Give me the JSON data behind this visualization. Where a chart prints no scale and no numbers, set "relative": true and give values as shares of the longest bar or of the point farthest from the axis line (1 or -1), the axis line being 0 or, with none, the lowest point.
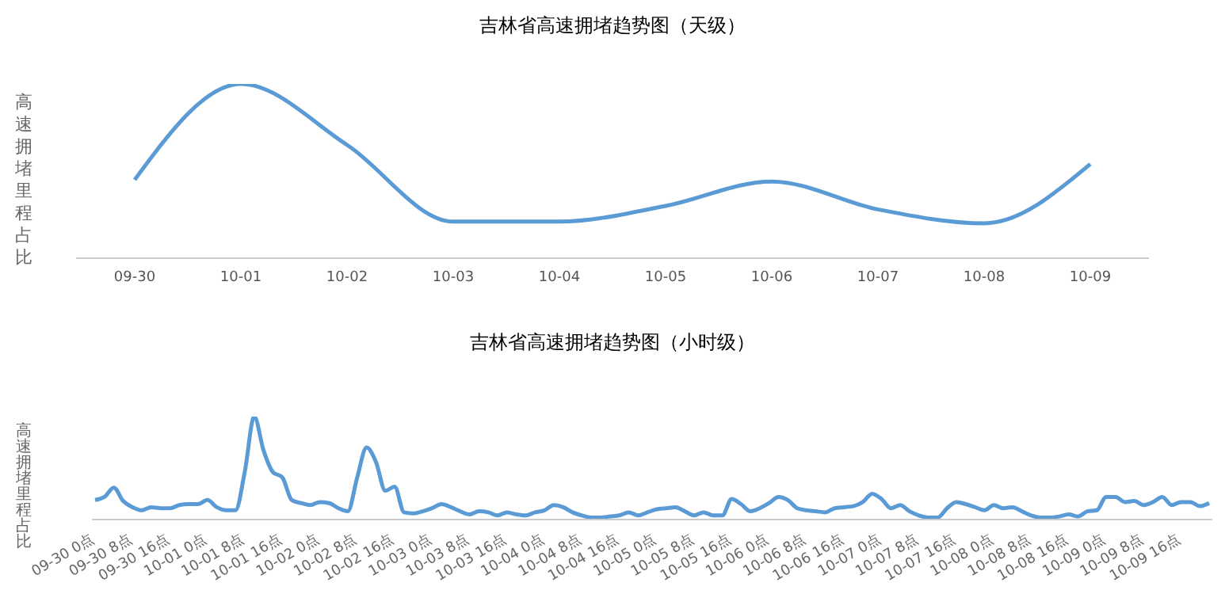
{
  "chart_data": [
    {
      "type": "line",
      "title": "吉林省高速拥堵趋势图（天级）",
      "ylabel": "高速拥堵里程占比",
      "relative": true,
      "categories": [
        "09-30",
        "10-01",
        "10-02",
        "10-03",
        "10-04",
        "10-05",
        "10-06",
        "10-07",
        "10-08",
        "10-09"
      ],
      "series": [
        {
          "color": "#5b9bd5",
          "values": [
            0.45,
            1.0,
            0.65,
            0.21,
            0.21,
            0.3,
            0.44,
            0.28,
            0.2,
            0.54
          ]
        }
      ]
    },
    {
      "type": "line",
      "title": "吉林省高速拥堵趋势图（小时级）",
      "ylabel": "高速拥堵里程占比",
      "relative": true,
      "categories": [
        "09-30 0点",
        null,
        null,
        null,
        "09-30 8点",
        null,
        null,
        null,
        "09-30 16点",
        null,
        null,
        null,
        "10-01 0点",
        null,
        null,
        null,
        "10-01 8点",
        null,
        null,
        null,
        "10-01 16点",
        null,
        null,
        null,
        "10-02 0点",
        null,
        null,
        null,
        "10-02 8点",
        null,
        null,
        null,
        "10-02 16点",
        null,
        null,
        null,
        "10-03 0点",
        null,
        null,
        null,
        "10-03 8点",
        null,
        null,
        null,
        "10-03 16点",
        null,
        null,
        null,
        "10-04 0点",
        null,
        null,
        null,
        "10-04 8点",
        null,
        null,
        null,
        "10-04 16点",
        null,
        null,
        null,
        "10-05 0点",
        null,
        null,
        null,
        "10-05 8点",
        null,
        null,
        null,
        "10-05 16点",
        null,
        null,
        null,
        "10-06 0点",
        null,
        null,
        null,
        "10-06 8点",
        null,
        null,
        null,
        "10-06 16点",
        null,
        null,
        null,
        "10-07 0点",
        null,
        null,
        null,
        "10-07 8点",
        null,
        null,
        null,
        "10-07 16点",
        null,
        null,
        null,
        "10-08 0点",
        null,
        null,
        null,
        "10-08 8点",
        null,
        null,
        null,
        "10-08 16点",
        null,
        null,
        null,
        "10-09 0点",
        null,
        null,
        null,
        "10-09 8点",
        null,
        null,
        null,
        "10-09 16点",
        null,
        null,
        null
      ],
      "series": [
        {
          "color": "#5b9bd5",
          "values": [
            0.19,
            0.22,
            0.31,
            0.18,
            0.12,
            0.09,
            0.12,
            0.11,
            0.11,
            0.14,
            0.15,
            0.15,
            0.19,
            0.12,
            0.09,
            0.09,
            0.47,
            1.0,
            0.67,
            0.46,
            0.41,
            0.19,
            0.16,
            0.14,
            0.17,
            0.16,
            0.11,
            0.08,
            0.41,
            0.7,
            0.56,
            0.28,
            0.32,
            0.07,
            0.06,
            0.08,
            0.11,
            0.15,
            0.12,
            0.08,
            0.05,
            0.08,
            0.07,
            0.04,
            0.07,
            0.05,
            0.04,
            0.07,
            0.09,
            0.14,
            0.12,
            0.07,
            0.04,
            0.02,
            0.02,
            0.03,
            0.04,
            0.07,
            0.04,
            0.07,
            0.1,
            0.11,
            0.12,
            0.08,
            0.04,
            0.07,
            0.04,
            0.04,
            0.2,
            0.15,
            0.08,
            0.11,
            0.16,
            0.22,
            0.19,
            0.11,
            0.09,
            0.08,
            0.07,
            0.11,
            0.12,
            0.13,
            0.17,
            0.25,
            0.2,
            0.11,
            0.14,
            0.08,
            0.04,
            0.02,
            0.02,
            0.11,
            0.17,
            0.15,
            0.12,
            0.09,
            0.14,
            0.11,
            0.12,
            0.08,
            0.04,
            0.02,
            0.02,
            0.03,
            0.05,
            0.03,
            0.08,
            0.09,
            0.22,
            0.22,
            0.17,
            0.18,
            0.14,
            0.17,
            0.22,
            0.14,
            0.17,
            0.17,
            0.13,
            0.16
          ]
        }
      ]
    }
  ]
}
